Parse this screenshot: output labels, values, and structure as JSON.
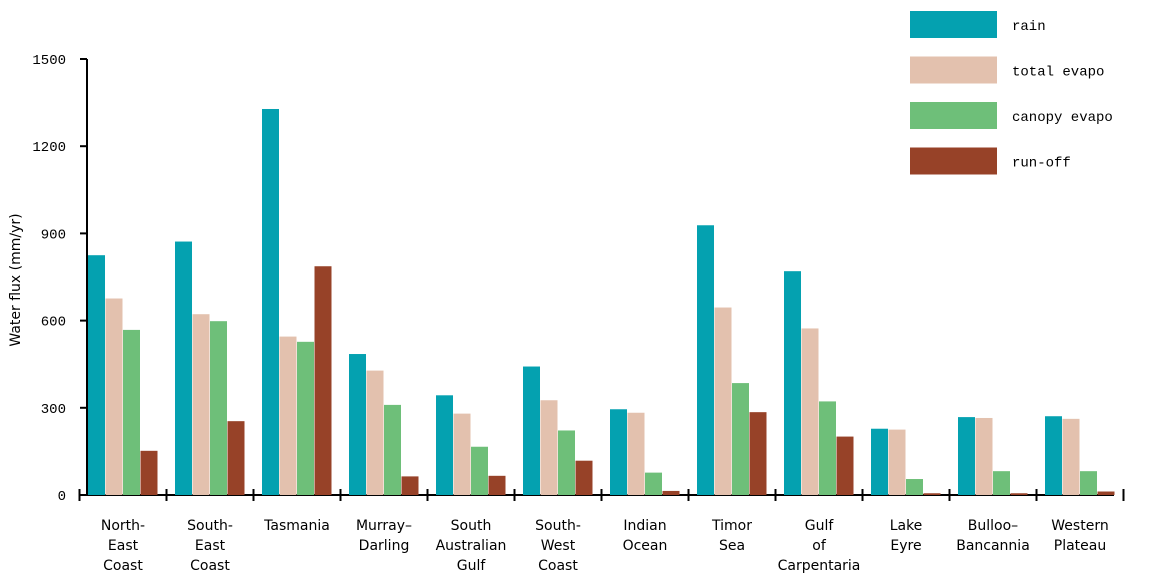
{
  "chart_data": {
    "type": "bar",
    "title": "",
    "xlabel": "",
    "ylabel": "Water flux (mm/yr)",
    "ylim": [
      0,
      1500
    ],
    "yticks": [
      0,
      300,
      600,
      900,
      1200,
      1500
    ],
    "grid": false,
    "legend_position": "top-right",
    "categories": [
      [
        "North-",
        "East",
        "Coast"
      ],
      [
        "South-",
        "East",
        "Coast"
      ],
      [
        "Tasmania"
      ],
      [
        "Murray–",
        "Darling"
      ],
      [
        "South",
        "Australian",
        "Gulf"
      ],
      [
        "South-",
        "West",
        "Coast"
      ],
      [
        "Indian",
        "Ocean"
      ],
      [
        "Timor",
        "Sea"
      ],
      [
        "Gulf",
        "of",
        "Carpentaria"
      ],
      [
        "Lake",
        "Eyre"
      ],
      [
        "Bulloo–",
        "Bancannia"
      ],
      [
        "Western",
        "Plateau"
      ]
    ],
    "series": [
      {
        "name": "rain",
        "color": "#04a1b0",
        "values": [
          825,
          872,
          1328,
          485,
          343,
          442,
          295,
          928,
          770,
          228,
          268,
          271
        ]
      },
      {
        "name": "total evapotranspiration",
        "legend_text": "total evapo",
        "color": "#e3c1ae",
        "values": [
          676,
          622,
          545,
          428,
          280,
          326,
          283,
          645,
          573,
          225,
          265,
          262
        ]
      },
      {
        "name": "canopy evapotranspiration",
        "legend_text": "canopy evapo",
        "color": "#6ebf79",
        "values": [
          568,
          598,
          527,
          310,
          166,
          222,
          77,
          385,
          322,
          55,
          82,
          82
        ]
      },
      {
        "name": "run-off",
        "color": "#974228",
        "values": [
          152,
          254,
          787,
          64,
          66,
          118,
          14,
          285,
          201,
          6,
          6,
          12
        ]
      }
    ]
  }
}
